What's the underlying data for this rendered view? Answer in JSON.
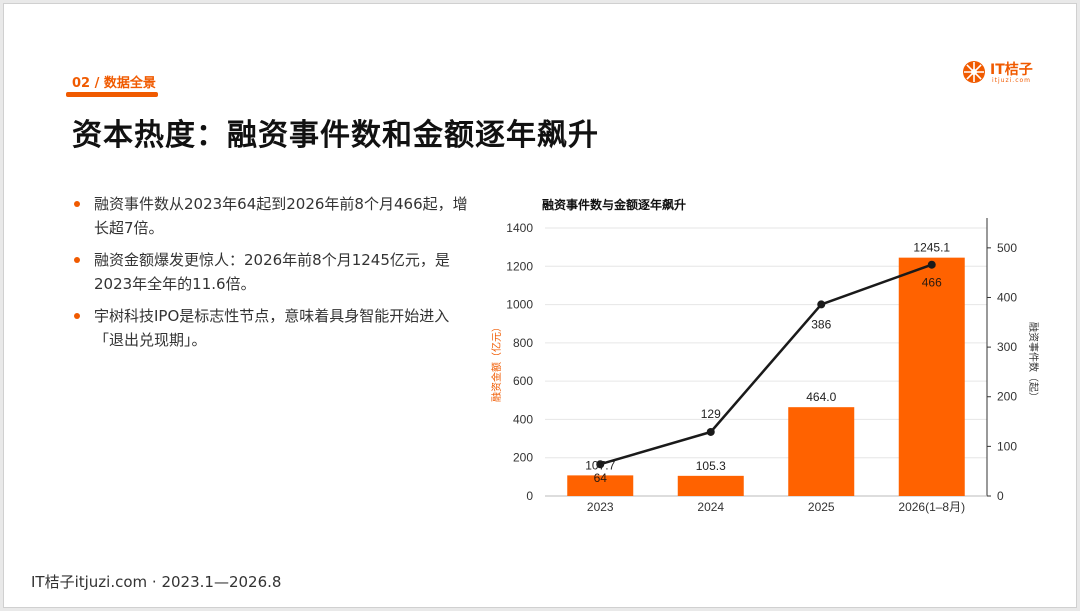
{
  "slide": {
    "section": "02 / 数据全景",
    "title": "资本热度：融资事件数和金额逐年飙升",
    "logo_text": "IT桔子",
    "logo_sub": "itjuzi.com",
    "bullets": [
      "融资事件数从2023年64起到2026年前8个月466起，增长超7倍。",
      "融资金额爆发更惊人：2026年前8个月1245亿元，是2023年全年的11.6倍。",
      "宇树科技IPO是标志性节点，意味着具身智能开始进入「退出兑现期」。"
    ],
    "footer": "IT桔子itjuzi.com · 2023.1—2026.8"
  },
  "colors": {
    "accent": "#f05a00",
    "bar": "#ff6200",
    "line": "#1a1a1a",
    "text": "#333333"
  },
  "chart_data": {
    "type": "bar",
    "title": "融资事件数与金额逐年飙升",
    "categories": [
      "2023",
      "2024",
      "2025",
      "2026(1–8月)"
    ],
    "series": [
      {
        "name": "融资金额",
        "type": "bar",
        "axis": "left",
        "values": [
          107.7,
          105.3,
          464.0,
          1245.1
        ],
        "labels": [
          "107.7",
          "105.3",
          "464.0",
          "1245.1"
        ]
      },
      {
        "name": "融资事件数",
        "type": "line",
        "axis": "right",
        "values": [
          64,
          129,
          386,
          466
        ],
        "labels": [
          "64",
          "129",
          "386",
          "466"
        ]
      }
    ],
    "ylabel": "融资金额（亿元）",
    "y2label": "融资事件数（起）",
    "ylim": [
      0,
      1400
    ],
    "y2lim": [
      0,
      540
    ],
    "yticks": [
      "0",
      "200",
      "400",
      "600",
      "800",
      "1000",
      "1200",
      "1400"
    ],
    "y2ticks": [
      "0",
      "100",
      "200",
      "300",
      "400",
      "500"
    ],
    "grid": true
  }
}
